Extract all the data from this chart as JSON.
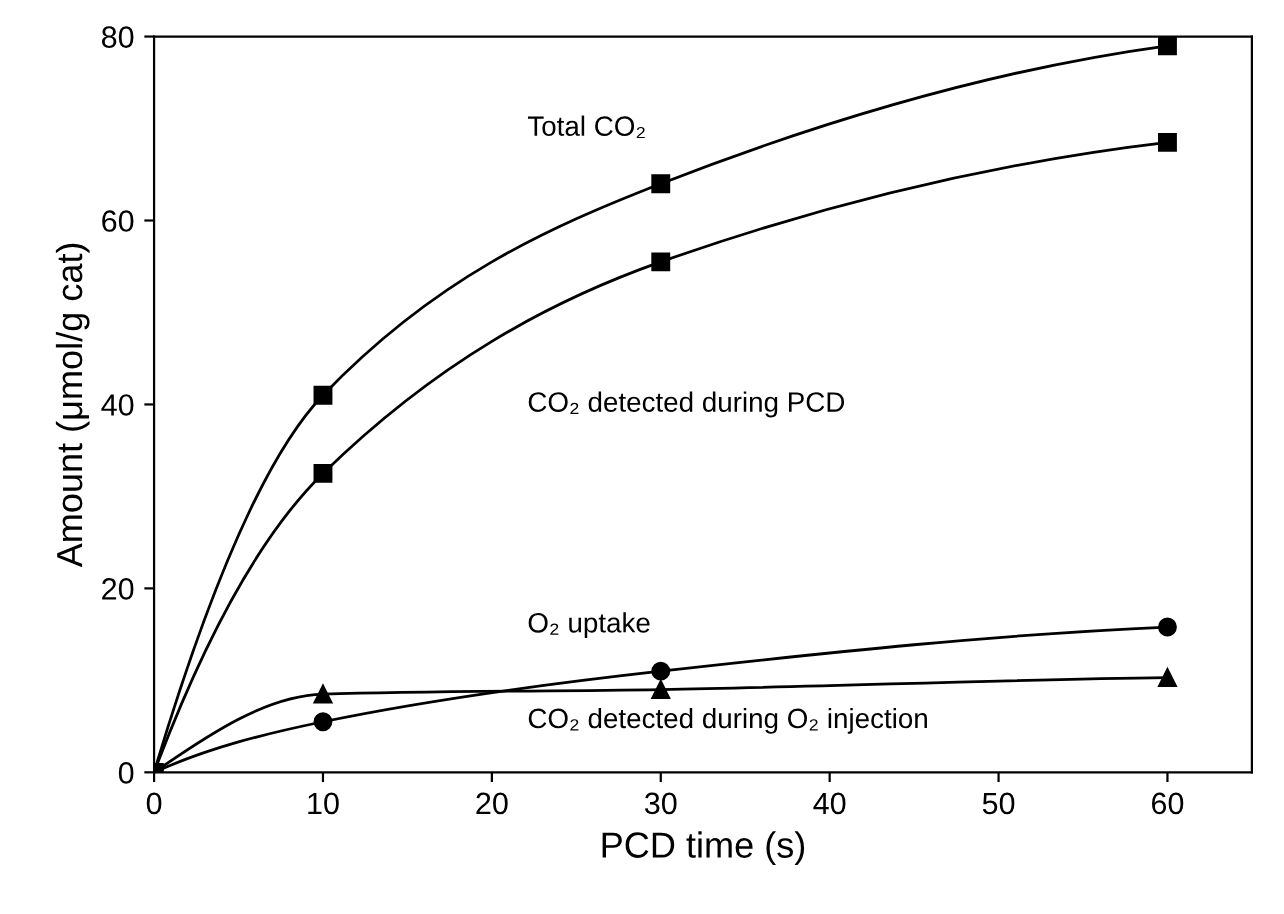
{
  "chart_data": {
    "type": "line",
    "xlabel": "PCD time (s)",
    "ylabel": "Amount (μmol/g cat)",
    "xlim": [
      0,
      65
    ],
    "xticks": [
      0,
      10,
      20,
      30,
      40,
      50,
      60
    ],
    "ylim": [
      0,
      80
    ],
    "yticks": [
      0,
      20,
      40,
      60,
      80
    ],
    "grid": false,
    "legend": false,
    "line_style": "solid",
    "series": [
      {
        "x": [
          0,
          10,
          30,
          60
        ],
        "values": [
          0,
          41,
          64,
          79
        ],
        "color": "#000000",
        "marker": "square"
      },
      {
        "x": [
          0,
          10,
          30,
          60
        ],
        "values": [
          0,
          32.5,
          55.5,
          68.5
        ],
        "color": "#000000",
        "marker": "square"
      },
      {
        "x": [
          0,
          10,
          30,
          60
        ],
        "values": [
          0,
          5.5,
          11,
          15.8
        ],
        "color": "#000000",
        "marker": "circle"
      },
      {
        "x": [
          0,
          10,
          30,
          60
        ],
        "values": [
          0,
          8.5,
          9,
          10.3
        ],
        "color": "#000000",
        "marker": "triangle"
      }
    ],
    "annotations": [
      "Total CO₂",
      "CO₂ detected during PCD",
      "O₂ uptake",
      "CO₂ detected during O₂ injection"
    ]
  }
}
